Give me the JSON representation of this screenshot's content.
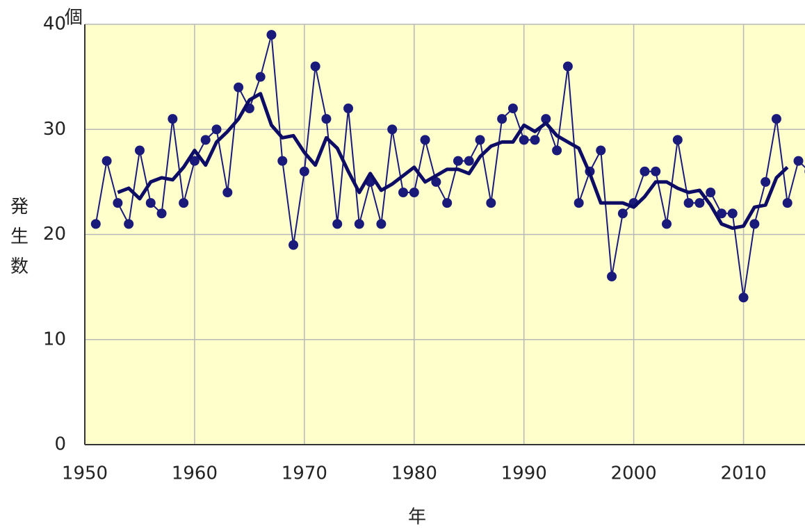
{
  "chart_data": {
    "type": "line",
    "unit_label": "個",
    "ylabel": "発生数",
    "xlabel": "年",
    "x": [
      1951,
      1952,
      1953,
      1954,
      1955,
      1956,
      1957,
      1958,
      1959,
      1960,
      1961,
      1962,
      1963,
      1964,
      1965,
      1966,
      1967,
      1968,
      1969,
      1970,
      1971,
      1972,
      1973,
      1974,
      1975,
      1976,
      1977,
      1978,
      1979,
      1980,
      1981,
      1982,
      1983,
      1984,
      1985,
      1986,
      1987,
      1988,
      1989,
      1990,
      1991,
      1992,
      1993,
      1994,
      1995,
      1996,
      1997,
      1998,
      1999,
      2000,
      2001,
      2002,
      2003,
      2004,
      2005,
      2006,
      2007,
      2008,
      2009,
      2010,
      2011,
      2012,
      2013,
      2014,
      2015,
      2016
    ],
    "series": [
      {
        "color": "#1a1a7a",
        "markers": true,
        "values": [
          21,
          27,
          23,
          21,
          28,
          23,
          22,
          31,
          23,
          27,
          29,
          30,
          24,
          34,
          32,
          35,
          39,
          27,
          19,
          26,
          36,
          31,
          21,
          32,
          21,
          25,
          21,
          30,
          24,
          24,
          29,
          25,
          23,
          27,
          27,
          29,
          23,
          31,
          32,
          29,
          29,
          31,
          28,
          36,
          23,
          26,
          28,
          16,
          22,
          23,
          26,
          26,
          21,
          29,
          23,
          23,
          24,
          22,
          22,
          14,
          21,
          25,
          31,
          23,
          27,
          26
        ]
      },
      {
        "color": "#0d0d66",
        "markers": false,
        "values": [
          null,
          null,
          24.0,
          24.4,
          23.4,
          25.0,
          25.4,
          25.2,
          26.4,
          28.0,
          26.6,
          28.8,
          29.8,
          31.0,
          32.8,
          33.4,
          30.4,
          29.2,
          29.4,
          27.8,
          26.6,
          29.2,
          28.2,
          26.0,
          24.0,
          25.8,
          24.2,
          24.8,
          25.6,
          26.4,
          25.0,
          25.6,
          26.2,
          26.2,
          25.8,
          27.4,
          28.4,
          28.8,
          28.8,
          30.4,
          29.8,
          30.6,
          29.4,
          28.8,
          28.2,
          25.8,
          23.0,
          23.0,
          23.0,
          22.6,
          23.6,
          25.0,
          25.0,
          24.4,
          24.0,
          24.2,
          22.8,
          21.0,
          20.6,
          20.8,
          22.6,
          22.8,
          25.4,
          26.4,
          null,
          null
        ]
      }
    ],
    "xlim": [
      1950,
      2016
    ],
    "xticks": [
      1950,
      1960,
      1970,
      1980,
      1990,
      2000,
      2010
    ],
    "ylim": [
      0,
      40
    ],
    "yticks": [
      0,
      10,
      20,
      30,
      40
    ],
    "grid": true,
    "background": "#ffffcc"
  }
}
